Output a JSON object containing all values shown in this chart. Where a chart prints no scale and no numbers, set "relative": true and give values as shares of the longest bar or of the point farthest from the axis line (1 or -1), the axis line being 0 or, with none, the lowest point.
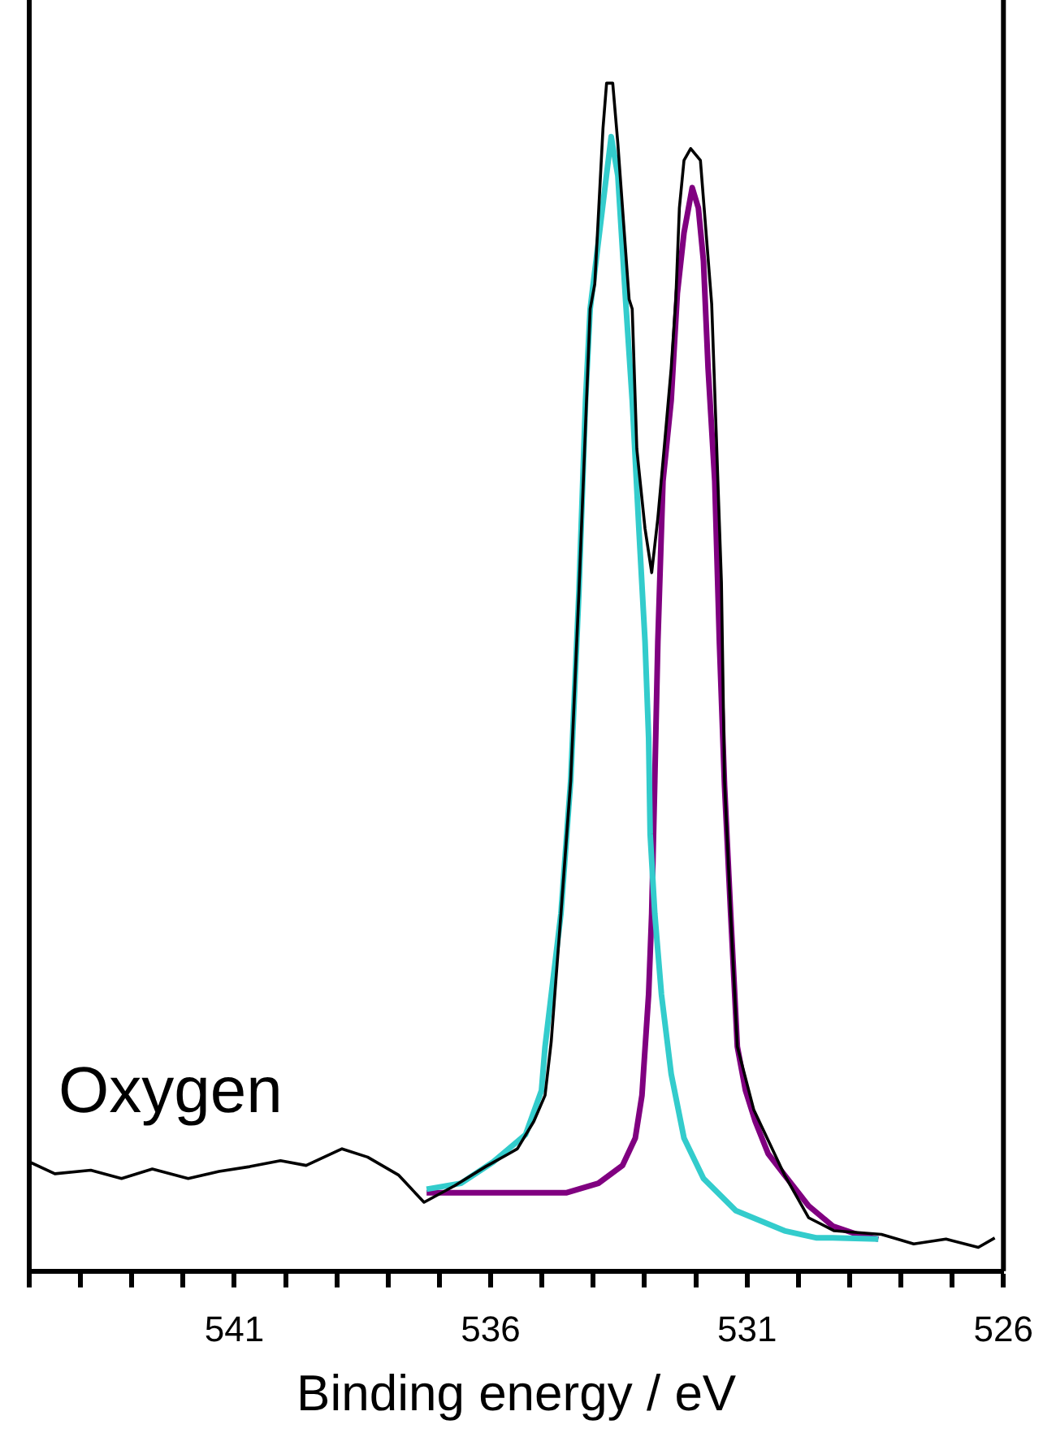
{
  "chart_data": {
    "type": "line",
    "xlabel": "Binding energy / eV",
    "annotations": [
      "Oxygen"
    ],
    "relative": true,
    "marker": "none",
    "line_style": "solid",
    "xlim": [
      545,
      526
    ],
    "xticks": [
      {
        "value": 545,
        "label": null
      },
      {
        "value": 544,
        "label": null
      },
      {
        "value": 543,
        "label": null
      },
      {
        "value": 542,
        "label": null
      },
      541,
      {
        "value": 540,
        "label": null
      },
      {
        "value": 539,
        "label": null
      },
      {
        "value": 538,
        "label": null
      },
      {
        "value": 537,
        "label": null
      },
      536,
      {
        "value": 535,
        "label": null
      },
      {
        "value": 534,
        "label": null
      },
      {
        "value": 533,
        "label": null
      },
      {
        "value": 532,
        "label": null
      },
      531,
      {
        "value": 530,
        "label": null
      },
      {
        "value": 529,
        "label": null
      },
      {
        "value": 528,
        "label": null
      },
      {
        "value": 527,
        "label": null
      },
      526
    ],
    "series": [
      {
        "color": "#000000",
        "x": [
          545,
          544.5,
          543.8,
          543.2,
          542.6,
          541.9,
          541.3,
          540.7,
          540.1,
          539.6,
          538.9,
          538.4,
          537.8,
          537.3,
          536.7,
          536.1,
          535.64,
          535.48,
          535.16,
          534.94,
          534.82,
          534.63,
          534.44,
          534.28,
          534.06,
          533.97,
          533.81,
          533.74,
          533.62,
          533.52,
          533.3,
          533.24,
          533.15,
          533.11,
          532.99,
          532.86,
          532.74,
          532.61,
          532.48,
          532.39,
          532.32,
          532.23,
          532.1,
          531.91,
          531.69,
          531.5,
          531.44,
          531.32,
          531.19,
          530.87,
          530.27,
          529.8,
          529.3,
          528.38,
          527.75,
          527.12,
          526.49,
          526.17
        ],
        "values": [
          0.092,
          0.082,
          0.085,
          0.078,
          0.086,
          0.078,
          0.084,
          0.088,
          0.093,
          0.089,
          0.103,
          0.096,
          0.081,
          0.058,
          0.072,
          0.088,
          0.099,
          0.103,
          0.126,
          0.148,
          0.193,
          0.301,
          0.413,
          0.571,
          0.81,
          0.831,
          0.962,
          1.0,
          1.0,
          0.949,
          0.818,
          0.81,
          0.692,
          0.675,
          0.625,
          0.588,
          0.634,
          0.696,
          0.76,
          0.818,
          0.895,
          0.935,
          0.945,
          0.935,
          0.814,
          0.58,
          0.413,
          0.301,
          0.189,
          0.136,
          0.081,
          0.045,
          0.034,
          0.031,
          0.023,
          0.027,
          0.02,
          0.028
        ]
      },
      {
        "color": "#33cccc",
        "x": [
          537.25,
          536.58,
          535.95,
          535.32,
          535.01,
          534.94,
          534.63,
          534.44,
          534.28,
          534.15,
          534.06,
          533.65,
          533.52,
          533.37,
          533.24,
          533.11,
          532.99,
          532.92,
          532.89,
          532.8,
          532.67,
          532.48,
          532.23,
          531.85,
          531.22,
          530.27,
          529.64,
          529.33,
          528.44
        ],
        "values": [
          0.069,
          0.074,
          0.092,
          0.115,
          0.152,
          0.189,
          0.301,
          0.413,
          0.571,
          0.733,
          0.81,
          0.955,
          0.922,
          0.818,
          0.733,
          0.625,
          0.53,
          0.449,
          0.368,
          0.301,
          0.233,
          0.166,
          0.112,
          0.078,
          0.051,
          0.034,
          0.028,
          0.028,
          0.027
        ]
      },
      {
        "color": "#800080",
        "x": [
          537.25,
          534.53,
          533.9,
          533.43,
          533.18,
          533.05,
          532.92,
          532.86,
          532.8,
          532.74,
          532.64,
          532.48,
          532.36,
          532.23,
          532.07,
          531.95,
          531.85,
          531.76,
          531.63,
          531.54,
          531.44,
          531.32,
          531.19,
          531.03,
          530.84,
          530.59,
          530.27,
          529.8,
          529.33,
          528.85,
          528.44
        ],
        "values": [
          0.066,
          0.066,
          0.074,
          0.089,
          0.112,
          0.148,
          0.233,
          0.301,
          0.413,
          0.53,
          0.665,
          0.733,
          0.823,
          0.874,
          0.912,
          0.895,
          0.85,
          0.76,
          0.665,
          0.53,
          0.409,
          0.301,
          0.189,
          0.152,
          0.126,
          0.099,
          0.081,
          0.055,
          0.038,
          0.031,
          0.027
        ]
      }
    ]
  }
}
